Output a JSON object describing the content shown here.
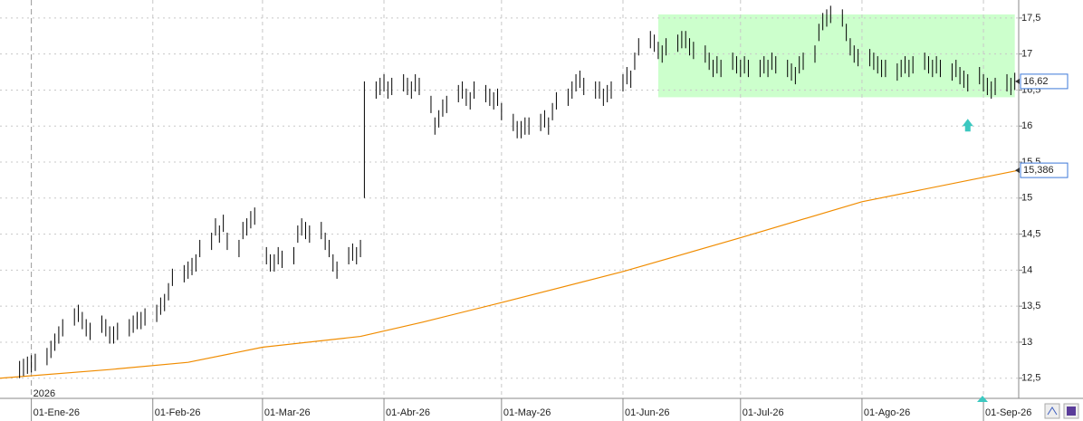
{
  "chart_data": {
    "type": "ohlc",
    "year_label": "2026",
    "xlim": [
      -8,
      252
    ],
    "ylim": [
      12.22,
      17.75
    ],
    "xticks": [
      {
        "value": 0,
        "label": "01-Ene-26"
      },
      {
        "value": 31,
        "label": "01-Feb-26"
      },
      {
        "value": 59,
        "label": "01-Mar-26"
      },
      {
        "value": 90,
        "label": "01-Abr-26"
      },
      {
        "value": 120,
        "label": "01-May-26"
      },
      {
        "value": 151,
        "label": "01-Jun-26"
      },
      {
        "value": 181,
        "label": "01-Jul-26"
      },
      {
        "value": 212,
        "label": "01-Ago-26"
      },
      {
        "value": 243,
        "label": "01-Sep-26"
      }
    ],
    "yticks": [
      {
        "value": 12.5,
        "label": "12,5"
      },
      13,
      {
        "value": 13.5,
        "label": "13,5"
      },
      14,
      {
        "value": 14.5,
        "label": "14,5"
      },
      15,
      {
        "value": 15.5,
        "label": "15,5"
      },
      16,
      {
        "value": 16.5,
        "label": "16,5"
      },
      17,
      {
        "value": 17.5,
        "label": "17,5"
      }
    ],
    "grid": true,
    "color": "#000000",
    "x": [
      -3,
      -2,
      -1,
      0,
      1,
      4,
      5,
      6,
      7,
      8,
      11,
      12,
      13,
      14,
      15,
      18,
      19,
      20,
      21,
      22,
      25,
      26,
      27,
      28,
      29,
      32,
      33,
      34,
      35,
      36,
      39,
      40,
      41,
      42,
      43,
      46,
      47,
      48,
      49,
      50,
      53,
      54,
      55,
      56,
      57,
      60,
      61,
      62,
      63,
      64,
      67,
      68,
      69,
      70,
      71,
      74,
      75,
      76,
      77,
      78,
      81,
      82,
      83,
      84,
      85,
      88,
      89,
      90,
      91,
      92,
      95,
      96,
      97,
      98,
      99,
      102,
      103,
      104,
      105,
      106,
      109,
      110,
      111,
      112,
      113,
      116,
      117,
      118,
      119,
      120,
      123,
      124,
      125,
      126,
      127,
      130,
      131,
      132,
      133,
      134,
      137,
      138,
      139,
      140,
      141,
      144,
      145,
      146,
      147,
      148,
      151,
      152,
      153,
      154,
      155,
      158,
      159,
      160,
      161,
      162,
      165,
      166,
      167,
      168,
      169,
      172,
      173,
      174,
      175,
      176,
      179,
      180,
      181,
      182,
      183,
      186,
      187,
      188,
      189,
      190,
      193,
      194,
      195,
      196,
      197,
      200,
      201,
      202,
      203,
      204,
      207,
      208,
      209,
      210,
      211,
      214,
      215,
      216,
      217,
      218,
      221,
      222,
      223,
      224,
      225,
      228,
      229,
      230,
      231,
      232,
      235,
      236,
      237,
      238,
      239,
      242,
      243,
      244,
      245,
      246,
      249,
      250,
      251
    ],
    "high": [
      12.74,
      12.77,
      12.8,
      12.82,
      12.84,
      12.92,
      13.02,
      13.12,
      13.22,
      13.32,
      13.47,
      13.52,
      13.42,
      13.32,
      13.27,
      13.37,
      13.32,
      13.22,
      13.22,
      13.27,
      13.32,
      13.37,
      13.42,
      13.42,
      13.47,
      13.52,
      13.62,
      13.67,
      13.82,
      14.02,
      14.07,
      14.12,
      14.17,
      14.22,
      14.42,
      14.52,
      14.72,
      14.62,
      14.77,
      14.52,
      14.42,
      14.67,
      14.72,
      14.82,
      14.87,
      14.32,
      14.22,
      14.22,
      14.32,
      14.27,
      14.32,
      14.62,
      14.72,
      14.67,
      14.62,
      14.67,
      14.52,
      14.42,
      14.22,
      14.12,
      14.32,
      14.37,
      14.32,
      14.42,
      16.62,
      16.62,
      16.67,
      16.72,
      16.62,
      16.67,
      16.72,
      16.67,
      16.62,
      16.72,
      16.67,
      16.42,
      16.12,
      16.22,
      16.37,
      16.42,
      16.57,
      16.62,
      16.52,
      16.47,
      16.62,
      16.57,
      16.52,
      16.47,
      16.52,
      16.32,
      16.17,
      16.07,
      16.07,
      16.12,
      16.12,
      16.17,
      16.22,
      16.12,
      16.32,
      16.47,
      16.52,
      16.62,
      16.72,
      16.77,
      16.67,
      16.62,
      16.62,
      16.52,
      16.57,
      16.62,
      16.72,
      16.82,
      16.77,
      17.02,
      17.22,
      17.32,
      17.27,
      17.17,
      17.12,
      17.22,
      17.27,
      17.32,
      17.32,
      17.22,
      17.17,
      17.12,
      17.02,
      16.92,
      16.97,
      16.92,
      17.02,
      16.97,
      16.92,
      16.97,
      16.92,
      16.92,
      16.97,
      16.92,
      17.02,
      16.97,
      16.92,
      16.87,
      16.82,
      16.97,
      17.02,
      17.12,
      17.42,
      17.57,
      17.62,
      17.67,
      17.62,
      17.42,
      17.22,
      17.12,
      17.07,
      17.07,
      17.02,
      16.97,
      16.92,
      16.92,
      16.87,
      16.92,
      16.97,
      16.92,
      16.97,
      17.02,
      16.97,
      16.92,
      16.97,
      16.92,
      16.87,
      16.92,
      16.82,
      16.77,
      16.72,
      16.82,
      16.72,
      16.67,
      16.62,
      16.67,
      16.72,
      16.67,
      16.74
    ],
    "low": [
      12.5,
      12.53,
      12.56,
      12.58,
      12.6,
      12.68,
      12.78,
      12.88,
      12.98,
      13.08,
      13.23,
      13.28,
      13.18,
      13.08,
      13.03,
      13.13,
      13.08,
      12.98,
      12.98,
      13.03,
      13.08,
      13.13,
      13.18,
      13.18,
      13.23,
      13.28,
      13.38,
      13.43,
      13.58,
      13.78,
      13.83,
      13.88,
      13.93,
      13.98,
      14.18,
      14.28,
      14.48,
      14.38,
      14.53,
      14.28,
      14.18,
      14.43,
      14.48,
      14.58,
      14.63,
      14.08,
      13.98,
      13.98,
      14.08,
      14.03,
      14.08,
      14.38,
      14.48,
      14.43,
      14.38,
      14.43,
      14.28,
      14.18,
      13.98,
      13.88,
      14.08,
      14.13,
      14.08,
      14.18,
      15.0,
      16.38,
      16.43,
      16.48,
      16.38,
      16.43,
      16.48,
      16.43,
      16.38,
      16.48,
      16.43,
      16.18,
      15.88,
      15.98,
      16.13,
      16.18,
      16.33,
      16.38,
      16.28,
      16.23,
      16.38,
      16.33,
      16.28,
      16.23,
      16.28,
      16.08,
      15.93,
      15.83,
      15.83,
      15.88,
      15.88,
      15.93,
      15.98,
      15.88,
      16.08,
      16.23,
      16.28,
      16.38,
      16.48,
      16.53,
      16.43,
      16.38,
      16.38,
      16.28,
      16.33,
      16.38,
      16.48,
      16.58,
      16.53,
      16.78,
      16.98,
      17.08,
      17.03,
      16.93,
      16.88,
      16.98,
      17.03,
      17.08,
      17.08,
      16.98,
      16.93,
      16.88,
      16.78,
      16.68,
      16.73,
      16.68,
      16.78,
      16.73,
      16.68,
      16.73,
      16.68,
      16.68,
      16.73,
      16.68,
      16.78,
      16.73,
      16.68,
      16.63,
      16.58,
      16.73,
      16.78,
      16.88,
      17.18,
      17.33,
      17.38,
      17.43,
      17.38,
      17.18,
      16.98,
      16.88,
      16.83,
      16.83,
      16.78,
      16.73,
      16.68,
      16.68,
      16.63,
      16.68,
      16.73,
      16.68,
      16.73,
      16.78,
      16.73,
      16.68,
      16.73,
      16.68,
      16.63,
      16.68,
      16.58,
      16.53,
      16.48,
      16.58,
      16.48,
      16.43,
      16.38,
      16.43,
      16.48,
      16.43,
      16.5
    ],
    "ma": {
      "color": "#f08c00",
      "x": [
        -8,
        20,
        40,
        59,
        84,
        100,
        120,
        151,
        181,
        212,
        252
      ],
      "values": [
        12.5,
        12.62,
        12.72,
        12.93,
        13.08,
        13.28,
        13.55,
        13.98,
        14.45,
        14.95,
        15.386
      ],
      "label": {
        "value": 15.386,
        "label": "15,386"
      }
    },
    "last_price": {
      "value": 16.62,
      "label": "16,62"
    },
    "zone": {
      "x": [
        160,
        251
      ],
      "y": [
        16.4,
        17.55
      ],
      "color": "#ccffcc"
    },
    "signal": {
      "x": 239,
      "y": 16.0,
      "color": "#3cc8c0"
    }
  }
}
